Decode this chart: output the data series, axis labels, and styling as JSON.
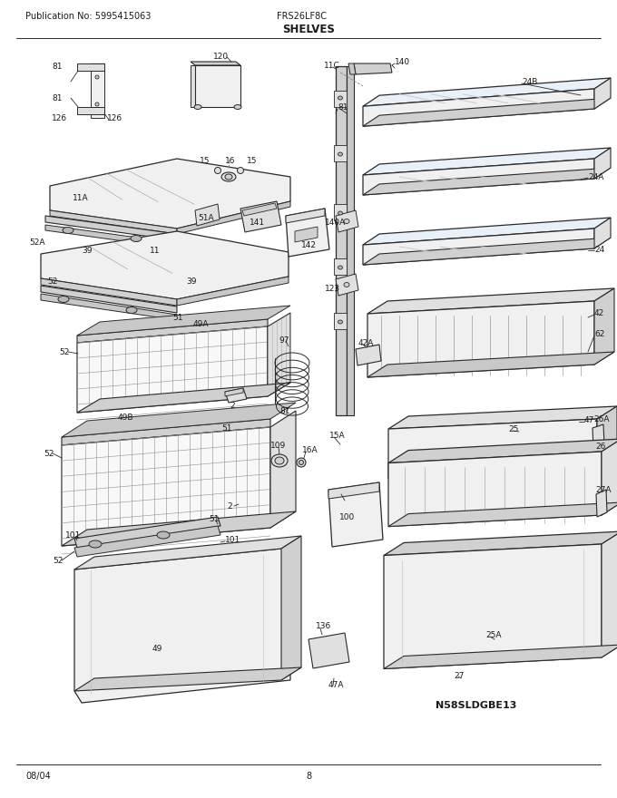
{
  "pub_no": "Publication No: 5995415063",
  "model": "FRS26LF8C",
  "title": "SHELVES",
  "date": "08/04",
  "page": "8",
  "diagram_id": "N58SLDGBE13",
  "bg_color": "#ffffff",
  "lc": "#2a2a2a",
  "tc": "#1a1a1a",
  "figsize": [
    6.8,
    8.8
  ],
  "dpi": 100
}
